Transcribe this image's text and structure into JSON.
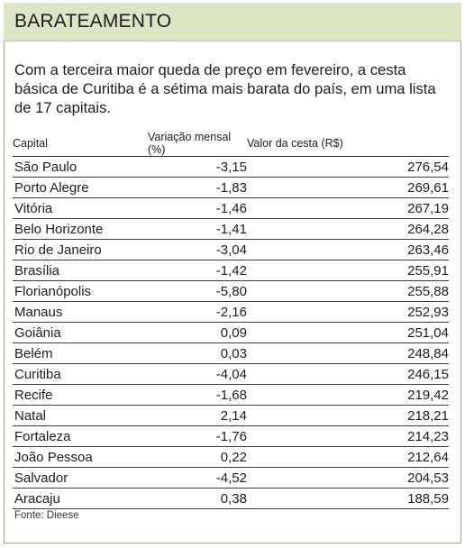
{
  "header": {
    "title": "BARATEAMENTO"
  },
  "intro": "Com a terceira maior queda de preço em fevereiro, a cesta básica de Curitiba é a sétima mais barata do país, em uma lista de 17 capitais.",
  "table": {
    "columns": [
      "Capital",
      "Variação mensal (%)",
      "Valor da cesta (R$)"
    ],
    "rows": [
      [
        "São Paulo",
        "-3,15",
        "276,54"
      ],
      [
        "Porto Alegre",
        "-1,83",
        "269,61"
      ],
      [
        "Vitória",
        "-1,46",
        "267,19"
      ],
      [
        "Belo Horizonte",
        "-1,41",
        "264,28"
      ],
      [
        "Rio de Janeiro",
        "-3,04",
        "263,46"
      ],
      [
        "Brasília",
        "-1,42",
        "255,91"
      ],
      [
        "Florianópolis",
        "-5,80",
        "255,88"
      ],
      [
        "Manaus",
        "-2,16",
        "252,93"
      ],
      [
        "Goiânia",
        "0,09",
        "251,04"
      ],
      [
        "Belém",
        "0,03",
        "248,84"
      ],
      [
        "Curitiba",
        "-4,04",
        "246,15"
      ],
      [
        "Recife",
        "-1,68",
        "219,42"
      ],
      [
        "Natal",
        "2,14",
        "218,21"
      ],
      [
        "Fortaleza",
        "-1,76",
        "214,23"
      ],
      [
        "João Pessoa",
        "0,22",
        "212,64"
      ],
      [
        "Salvador",
        "-4,52",
        "204,53"
      ],
      [
        "Aracaju",
        "0,38",
        "188,59"
      ]
    ]
  },
  "source": "Fonte: Dieese",
  "colors": {
    "header_bg": "#dde6c4",
    "frame": "#9aa48a",
    "text": "#1c1c1c"
  }
}
